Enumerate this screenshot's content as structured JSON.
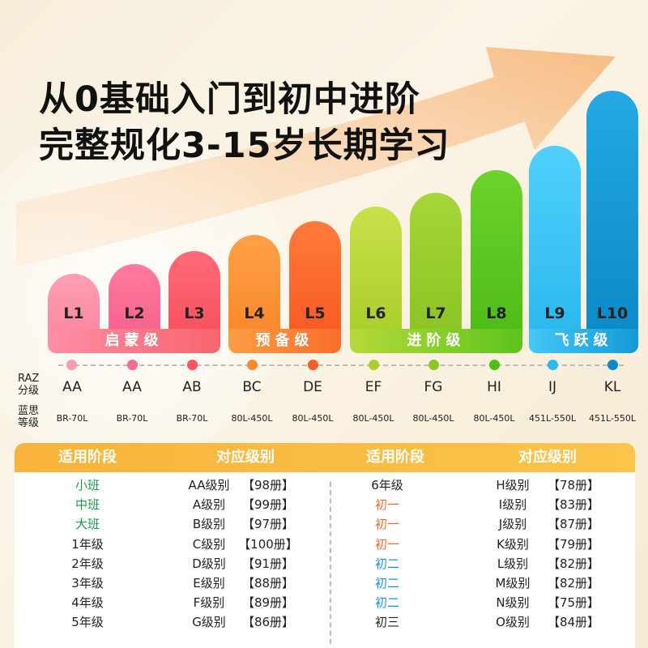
{
  "headline": {
    "line1": "从0基础入门到初中进阶",
    "line2": "完整规化3-15岁长期学习"
  },
  "levels": [
    "L1",
    "L2",
    "L3",
    "L4",
    "L5",
    "L6",
    "L7",
    "L8",
    "L9",
    "L10"
  ],
  "groups": [
    "启蒙级",
    "预备级",
    "进阶级",
    "飞跃级"
  ],
  "side_labels": {
    "raz_1": "RAZ",
    "raz_2": "分级",
    "lexile_1": "蓝思",
    "lexile_2": "等级"
  },
  "raz": [
    "AA",
    "AA",
    "AB",
    "BC",
    "DE",
    "EF",
    "FG",
    "HI",
    "IJ",
    "KL"
  ],
  "lexile": [
    "BR-70L",
    "BR-70L",
    "BR-70L",
    "80L-450L",
    "80L-450L",
    "80L-450L",
    "80L-450L",
    "80L-450L",
    "451L-550L",
    "451L-550L"
  ],
  "colors": {
    "green": "#1f9a4a",
    "orange": "#f06a2a",
    "blue": "#1c8fe0",
    "default": "#222222"
  },
  "table": {
    "headers": [
      "适用阶段",
      "对应级别",
      "适用阶段",
      "对应级别"
    ],
    "left": [
      {
        "stage": "小班",
        "color": "green",
        "level": "AA级别",
        "count": "【98册】"
      },
      {
        "stage": "中班",
        "color": "green",
        "level": "A级别",
        "count": "【99册】"
      },
      {
        "stage": "大班",
        "color": "green",
        "level": "B级别",
        "count": "【97册】"
      },
      {
        "stage": "1年级",
        "color": "default",
        "level": "C级别",
        "count": "【100册】"
      },
      {
        "stage": "2年级",
        "color": "default",
        "level": "D级别",
        "count": "【91册】"
      },
      {
        "stage": "3年级",
        "color": "default",
        "level": "E级别",
        "count": "【88册】"
      },
      {
        "stage": "4年级",
        "color": "default",
        "level": "F级别",
        "count": "【89册】"
      },
      {
        "stage": "5年级",
        "color": "default",
        "level": "G级别",
        "count": "【86册】"
      }
    ],
    "right": [
      {
        "stage": "6年级",
        "color": "default",
        "level": "H级别",
        "count": "【78册】"
      },
      {
        "stage": "初一",
        "color": "orange",
        "level": "I级别",
        "count": "【83册】"
      },
      {
        "stage": "初一",
        "color": "orange",
        "level": "J级别",
        "count": "【87册】"
      },
      {
        "stage": "初一",
        "color": "orange",
        "level": "K级别",
        "count": "【79册】"
      },
      {
        "stage": "初二",
        "color": "blue",
        "level": "L级别",
        "count": "【82册】"
      },
      {
        "stage": "初二",
        "color": "blue",
        "level": "M级别",
        "count": "【82册】"
      },
      {
        "stage": "初二",
        "color": "blue",
        "level": "N级别",
        "count": "【75册】"
      },
      {
        "stage": "初三",
        "color": "default",
        "level": "O级别",
        "count": "【84册】"
      }
    ]
  }
}
